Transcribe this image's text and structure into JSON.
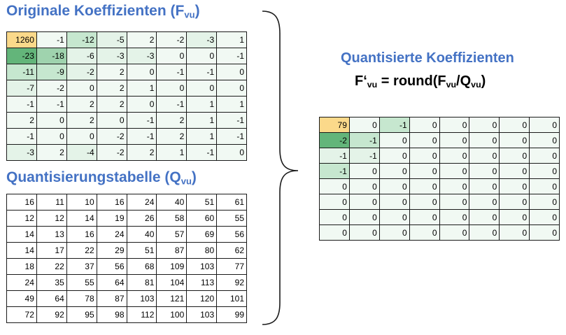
{
  "titles": {
    "original": "Originale Koeffizienten (F",
    "original_sub": "vu",
    "original_close": ")",
    "quant_table": "Quantisierungstabelle (Q",
    "quant_table_sub": "vu",
    "quant_table_close": ")",
    "quantized": "Quantisierte Koeffizienten"
  },
  "formula": {
    "lhs": "F‘",
    "lhs_sub": "vu",
    "mid": " = round(F",
    "f_sub": "vu",
    "slash": "/Q",
    "q_sub": "vu",
    "close": ")"
  },
  "colors": {
    "title": "#4472c4",
    "dc_yellow": "#fbd98a",
    "green_strong": "#63b57a",
    "green_medium": "#9fd3ae",
    "green_light": "#c6e7cf",
    "green_pale": "#e4f3e8",
    "green_faint": "#f1f9f3",
    "white": "#ffffff"
  },
  "original_coefficients": [
    [
      "1260",
      "-1",
      "-12",
      "-5",
      "2",
      "-2",
      "-3",
      "1"
    ],
    [
      "-23",
      "-18",
      "-6",
      "-3",
      "-3",
      "0",
      "0",
      "-1"
    ],
    [
      "-11",
      "-9",
      "-2",
      "2",
      "0",
      "-1",
      "-1",
      "0"
    ],
    [
      "-7",
      "-2",
      "0",
      "2",
      "1",
      "0",
      "0",
      "0"
    ],
    [
      "-1",
      "-1",
      "2",
      "2",
      "0",
      "-1",
      "1",
      "1"
    ],
    [
      "2",
      "0",
      "2",
      "0",
      "-1",
      "2",
      "1",
      "-1"
    ],
    [
      "-1",
      "0",
      "0",
      "-2",
      "-1",
      "2",
      "1",
      "-1"
    ],
    [
      "-3",
      "2",
      "-4",
      "-2",
      "2",
      "1",
      "-1",
      "0"
    ]
  ],
  "original_shading": [
    [
      "dc_yellow",
      "green_faint",
      "green_light",
      "green_pale",
      "green_faint",
      "green_faint",
      "green_pale",
      "green_faint"
    ],
    [
      "green_strong",
      "green_medium",
      "green_pale",
      "green_pale",
      "green_pale",
      "green_faint",
      "green_faint",
      "green_faint"
    ],
    [
      "green_light",
      "green_light",
      "green_pale",
      "green_faint",
      "green_faint",
      "green_faint",
      "green_faint",
      "green_faint"
    ],
    [
      "green_pale",
      "green_faint",
      "green_faint",
      "green_faint",
      "green_faint",
      "green_faint",
      "green_faint",
      "green_faint"
    ],
    [
      "green_faint",
      "green_faint",
      "green_faint",
      "green_faint",
      "green_faint",
      "green_faint",
      "green_faint",
      "green_faint"
    ],
    [
      "green_faint",
      "green_faint",
      "green_faint",
      "green_faint",
      "green_faint",
      "green_faint",
      "green_faint",
      "green_faint"
    ],
    [
      "green_faint",
      "green_faint",
      "green_faint",
      "green_faint",
      "green_faint",
      "green_faint",
      "green_faint",
      "green_faint"
    ],
    [
      "green_pale",
      "green_faint",
      "green_pale",
      "green_faint",
      "green_faint",
      "green_faint",
      "green_faint",
      "green_faint"
    ]
  ],
  "quantization_table": [
    [
      "16",
      "11",
      "10",
      "16",
      "24",
      "40",
      "51",
      "61"
    ],
    [
      "12",
      "12",
      "14",
      "19",
      "26",
      "58",
      "60",
      "55"
    ],
    [
      "14",
      "13",
      "16",
      "24",
      "40",
      "57",
      "69",
      "56"
    ],
    [
      "14",
      "17",
      "22",
      "29",
      "51",
      "87",
      "80",
      "62"
    ],
    [
      "18",
      "22",
      "37",
      "56",
      "68",
      "109",
      "103",
      "77"
    ],
    [
      "24",
      "35",
      "55",
      "64",
      "81",
      "104",
      "113",
      "92"
    ],
    [
      "49",
      "64",
      "78",
      "87",
      "103",
      "121",
      "120",
      "101"
    ],
    [
      "72",
      "92",
      "95",
      "98",
      "112",
      "100",
      "103",
      "99"
    ]
  ],
  "quantized_coefficients": [
    [
      "79",
      "0",
      "-1",
      "0",
      "0",
      "0",
      "0",
      "0"
    ],
    [
      "-2",
      "-1",
      "0",
      "0",
      "0",
      "0",
      "0",
      "0"
    ],
    [
      "-1",
      "-1",
      "0",
      "0",
      "0",
      "0",
      "0",
      "0"
    ],
    [
      "-1",
      "0",
      "0",
      "0",
      "0",
      "0",
      "0",
      "0"
    ],
    [
      "0",
      "0",
      "0",
      "0",
      "0",
      "0",
      "0",
      "0"
    ],
    [
      "0",
      "0",
      "0",
      "0",
      "0",
      "0",
      "0",
      "0"
    ],
    [
      "0",
      "0",
      "0",
      "0",
      "0",
      "0",
      "0",
      "0"
    ],
    [
      "0",
      "0",
      "0",
      "0",
      "0",
      "0",
      "0",
      "0"
    ]
  ],
  "quantized_shading": [
    [
      "dc_yellow",
      "green_faint",
      "green_light",
      "green_faint",
      "green_faint",
      "green_faint",
      "green_faint",
      "green_faint"
    ],
    [
      "green_strong",
      "green_light",
      "green_faint",
      "green_faint",
      "green_faint",
      "green_faint",
      "green_faint",
      "green_faint"
    ],
    [
      "green_pale",
      "green_pale",
      "green_faint",
      "green_faint",
      "green_faint",
      "green_faint",
      "green_faint",
      "green_faint"
    ],
    [
      "green_light",
      "green_faint",
      "green_faint",
      "green_faint",
      "green_faint",
      "green_faint",
      "green_faint",
      "green_faint"
    ],
    [
      "green_faint",
      "green_faint",
      "green_faint",
      "green_faint",
      "green_faint",
      "green_faint",
      "green_faint",
      "green_faint"
    ],
    [
      "green_faint",
      "green_faint",
      "green_faint",
      "green_faint",
      "green_faint",
      "green_faint",
      "green_faint",
      "green_faint"
    ],
    [
      "green_faint",
      "green_faint",
      "green_faint",
      "green_faint",
      "green_faint",
      "green_faint",
      "green_faint",
      "green_faint"
    ],
    [
      "green_faint",
      "green_faint",
      "green_faint",
      "green_faint",
      "green_faint",
      "green_faint",
      "green_faint",
      "green_faint"
    ]
  ]
}
